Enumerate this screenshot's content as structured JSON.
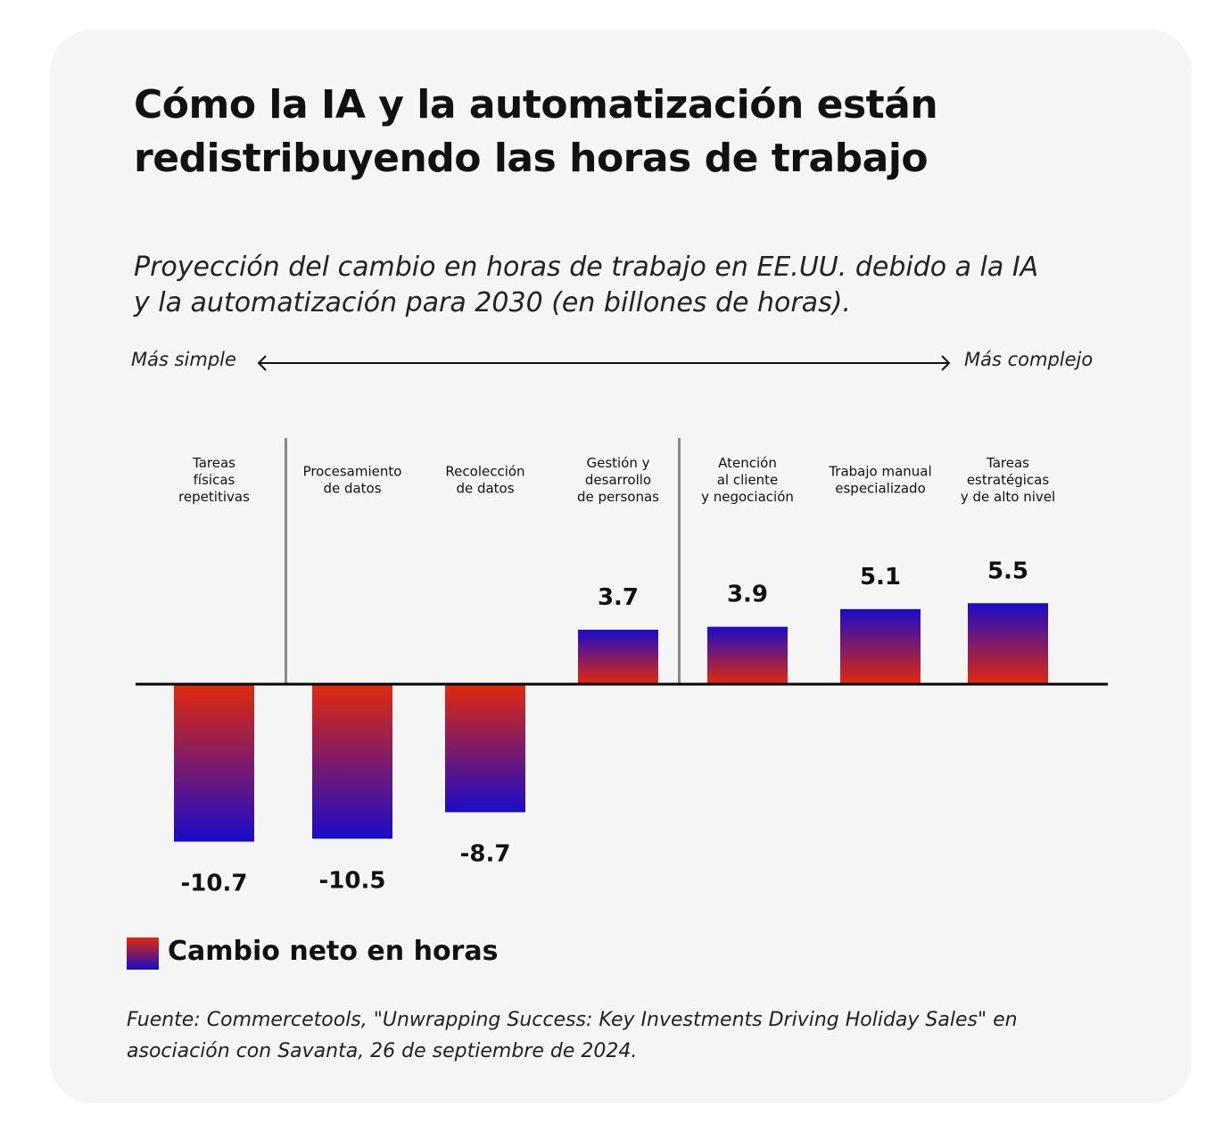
{
  "title_line1": "Cómo la IA y la automatización están",
  "title_line2": "redistribuyendo las horas de trabajo",
  "subtitle_line1": "Proyección del cambio en horas de trabajo en EE.UU. debido a la IA",
  "subtitle_line2": "y la automatización para 2030 (en billones de horas).",
  "axis": {
    "left_label": "Más simple",
    "right_label": "Más complejo"
  },
  "legend": {
    "label": "Cambio neto en horas"
  },
  "source_line1": "Fuente: Commercetools, \"Unwrapping Success: Key Investments Driving Holiday Sales\" en",
  "source_line2": "asociación con Savanta, 26 de septiembre de 2024.",
  "colors": {
    "positive_top": "#1a0cc8",
    "positive_bottom": "#e22a0a",
    "background": "#f5f5f5",
    "text": "#111111",
    "divider": "#8a8a8a"
  },
  "chart_data": {
    "type": "bar",
    "categories": [
      [
        "Tareas",
        "físicas",
        "repetitivas"
      ],
      [
        "Procesamiento",
        "de datos"
      ],
      [
        "Recolección",
        "de datos"
      ],
      [
        "Gestión y",
        "desarrollo",
        "de personas"
      ],
      [
        "Atención",
        "al cliente",
        "y negociación"
      ],
      [
        "Trabajo manual",
        "especializado"
      ],
      [
        "Tareas",
        "estratégicas",
        "y de alto nivel"
      ]
    ],
    "values": [
      -10.7,
      -10.5,
      -8.7,
      3.7,
      3.9,
      5.1,
      5.5
    ],
    "value_labels": [
      "-10.7",
      "-10.5",
      "-8.7",
      "3.7",
      "3.9",
      "5.1",
      "5.5"
    ],
    "series": [
      {
        "name": "Cambio neto en horas",
        "values": [
          -10.7,
          -10.5,
          -8.7,
          3.7,
          3.9,
          5.1,
          5.5
        ]
      }
    ],
    "group_dividers_after": [
      0,
      3
    ],
    "legend_position": "bottom-left",
    "grid": false
  }
}
